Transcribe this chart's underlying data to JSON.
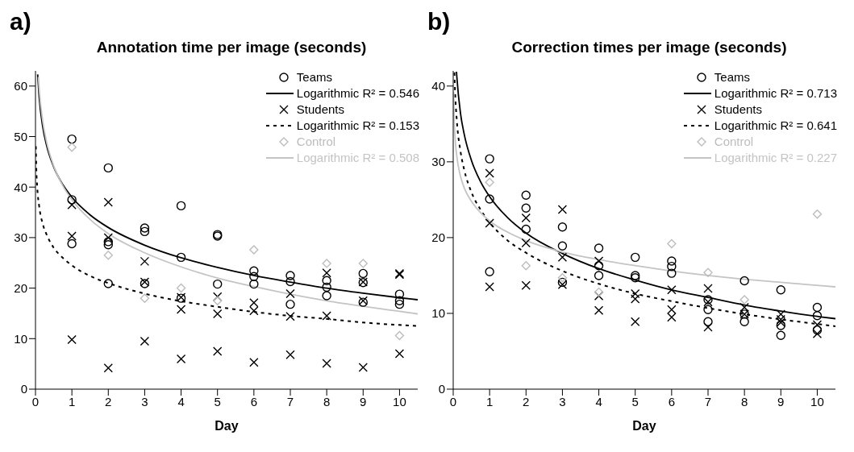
{
  "chart_data": [
    {
      "type": "scatter",
      "title": "Annotation time per image (seconds)",
      "xlabel": "Day",
      "annotations": [
        "a)"
      ],
      "xlim": [
        0,
        10.5
      ],
      "xticks": [
        0,
        1,
        2,
        3,
        4,
        5,
        6,
        7,
        8,
        9,
        10
      ],
      "ylim": [
        0,
        63
      ],
      "yticks": [
        0,
        10,
        20,
        30,
        40,
        50,
        60
      ],
      "legend": "top right",
      "series": [
        {
          "name": "Teams",
          "type": "scatter",
          "marker": "circle",
          "color": "#000000",
          "x": [
            1,
            1,
            1,
            2,
            2,
            2,
            2,
            3,
            3,
            3,
            4,
            4,
            4,
            5,
            5,
            5,
            6,
            6,
            6,
            7,
            7,
            7,
            8,
            8,
            8,
            9,
            9,
            9,
            10,
            10,
            10
          ],
          "values": [
            49.5,
            37.5,
            28.8,
            43.8,
            29.2,
            28.6,
            20.9,
            31.9,
            31.2,
            20.9,
            36.3,
            26.1,
            18.0,
            30.6,
            30.3,
            20.8,
            23.4,
            22.3,
            20.8,
            22.5,
            21.3,
            16.8,
            21.5,
            20.2,
            18.5,
            22.9,
            21.1,
            17.2,
            18.8,
            17.5,
            16.8
          ]
        },
        {
          "name": "Logarithmic R² = 0.546",
          "type": "line",
          "line_style": "solid",
          "color": "#000000",
          "x": [
            0.06,
            0.1,
            0.2,
            0.3,
            0.5,
            0.75,
            1,
            1.5,
            2,
            3,
            4,
            5,
            6,
            7,
            8,
            9,
            10,
            10.5
          ],
          "values": [
            62.3,
            57.9,
            51.9,
            48.4,
            44.0,
            40.5,
            38.0,
            34.5,
            32.0,
            28.5,
            26.0,
            24.1,
            22.5,
            21.2,
            20.0,
            19.0,
            18.1,
            17.7
          ]
        },
        {
          "name": "Students",
          "type": "scatter",
          "marker": "cross",
          "color": "#000000",
          "x": [
            1,
            1,
            1,
            2,
            2,
            2,
            3,
            3,
            3,
            4,
            4,
            4,
            5,
            5,
            5,
            6,
            6,
            6,
            7,
            7,
            7,
            8,
            8,
            8,
            9,
            9,
            9,
            10,
            10,
            10
          ],
          "values": [
            36.5,
            30.3,
            9.8,
            37.0,
            30.0,
            4.2,
            25.3,
            21.2,
            9.5,
            18.2,
            15.8,
            6.0,
            18.3,
            14.9,
            7.5,
            17.1,
            15.5,
            5.3,
            18.9,
            14.4,
            6.8,
            23.0,
            14.5,
            5.1,
            21.2,
            17.5,
            4.3,
            22.9,
            22.7,
            7.0
          ]
        },
        {
          "name": "Logarithmic R² = 0.153",
          "type": "line",
          "line_style": "dashed",
          "color": "#000000",
          "x": [
            0.01,
            0.02,
            0.05,
            0.1,
            0.2,
            0.3,
            0.5,
            0.75,
            1,
            1.5,
            2,
            3,
            4,
            5,
            6,
            7,
            8,
            9,
            10,
            10.5
          ],
          "values": [
            48.1,
            44.5,
            39.8,
            36.3,
            32.7,
            30.7,
            28.0,
            26.0,
            24.5,
            22.4,
            21.0,
            18.9,
            17.4,
            16.3,
            15.3,
            14.5,
            13.9,
            13.2,
            12.7,
            12.5
          ]
        },
        {
          "name": "Control",
          "type": "scatter",
          "marker": "diamond",
          "color": "#bdbdbd",
          "x": [
            1,
            2,
            3,
            4,
            5,
            6,
            8,
            9,
            10
          ],
          "values": [
            47.9,
            26.5,
            18.0,
            20.0,
            17.5,
            27.6,
            24.9,
            24.9,
            10.6
          ]
        },
        {
          "name": "Logarithmic R² = 0.508",
          "type": "line",
          "line_style": "solid",
          "color": "#c4c4c4",
          "x": [
            0.08,
            0.1,
            0.2,
            0.3,
            0.5,
            0.75,
            1,
            1.5,
            2,
            3,
            4,
            5,
            6,
            7,
            8,
            9,
            10,
            10.5
          ],
          "values": [
            61.8,
            59.6,
            53.0,
            49.1,
            44.2,
            40.3,
            37.5,
            33.6,
            30.8,
            27.0,
            24.2,
            22.0,
            20.3,
            18.8,
            17.5,
            16.4,
            15.4,
            14.9
          ]
        }
      ]
    },
    {
      "type": "scatter",
      "title": "Correction times per image (seconds)",
      "xlabel": "Day",
      "annotations": [
        "b)"
      ],
      "xlim": [
        0,
        10.5
      ],
      "xticks": [
        0,
        1,
        2,
        3,
        4,
        5,
        6,
        7,
        8,
        9,
        10
      ],
      "ylim": [
        0,
        42
      ],
      "yticks": [
        0,
        10,
        20,
        30,
        40
      ],
      "legend": "top right",
      "series": [
        {
          "name": "Teams",
          "type": "scatter",
          "marker": "circle",
          "color": "#000000",
          "x": [
            1,
            1,
            1,
            2,
            2,
            2,
            3,
            3,
            3,
            4,
            4,
            4,
            5,
            5,
            5,
            6,
            6,
            6,
            7,
            7,
            7,
            8,
            8,
            8,
            9,
            9,
            9,
            10,
            10,
            10
          ],
          "values": [
            30.4,
            25.1,
            15.5,
            25.6,
            23.9,
            21.1,
            21.4,
            18.9,
            14.1,
            18.6,
            16.3,
            15.0,
            17.4,
            15.0,
            14.7,
            16.9,
            16.2,
            15.3,
            11.8,
            10.5,
            8.9,
            14.3,
            9.9,
            8.9,
            13.1,
            8.4,
            7.1,
            10.8,
            9.7,
            7.8
          ]
        },
        {
          "name": "Logarithmic R² = 0.713",
          "type": "line",
          "line_style": "solid",
          "color": "#000000",
          "x": [
            0.09,
            0.1,
            0.2,
            0.3,
            0.5,
            0.75,
            1,
            1.5,
            2,
            3,
            4,
            5,
            6,
            7,
            8,
            9,
            10,
            10.5
          ],
          "values": [
            41.9,
            41.2,
            36.4,
            33.7,
            30.2,
            27.4,
            25.4,
            22.6,
            20.6,
            17.9,
            15.9,
            14.4,
            13.1,
            12.1,
            11.1,
            10.3,
            9.6,
            9.3
          ]
        },
        {
          "name": "Students",
          "type": "scatter",
          "marker": "cross",
          "color": "#000000",
          "x": [
            1,
            1,
            1,
            2,
            2,
            2,
            3,
            3,
            3,
            4,
            4,
            4,
            5,
            5,
            5,
            6,
            6,
            6,
            7,
            7,
            7,
            8,
            8,
            9,
            9,
            9,
            10,
            10
          ],
          "values": [
            28.5,
            21.9,
            13.5,
            22.6,
            19.3,
            13.7,
            23.7,
            17.4,
            13.8,
            16.9,
            12.3,
            10.4,
            12.6,
            11.9,
            8.9,
            13.1,
            10.5,
            9.5,
            13.3,
            11.5,
            8.2,
            10.8,
            9.9,
            9.9,
            9.2,
            8.8,
            8.5,
            7.3
          ]
        },
        {
          "name": "Logarithmic R² = 0.641",
          "type": "line",
          "line_style": "dashed",
          "color": "#000000",
          "x": [
            0.033,
            0.05,
            0.1,
            0.2,
            0.3,
            0.5,
            0.75,
            1,
            1.5,
            2,
            3,
            4,
            5,
            6,
            7,
            8,
            9,
            10,
            10.5
          ],
          "values": [
            41.8,
            39.4,
            35.4,
            31.4,
            29.0,
            26.0,
            23.7,
            22.0,
            19.6,
            18.0,
            15.6,
            13.9,
            12.6,
            11.6,
            10.7,
            9.9,
            9.2,
            8.6,
            8.3
          ]
        },
        {
          "name": "Control",
          "type": "scatter",
          "marker": "diamond",
          "color": "#bdbdbd",
          "x": [
            1,
            2,
            3,
            4,
            6,
            7,
            8,
            10
          ],
          "values": [
            27.3,
            16.3,
            14.7,
            12.8,
            19.2,
            15.4,
            11.8,
            23.1
          ]
        },
        {
          "name": "Logarithmic R² = 0.227",
          "type": "line",
          "line_style": "solid",
          "color": "#c4c4c4",
          "x": [
            0.01,
            0.02,
            0.05,
            0.1,
            0.2,
            0.3,
            0.5,
            0.75,
            1,
            1.5,
            2,
            3,
            4,
            5,
            6,
            7,
            8,
            9,
            10,
            10.5
          ],
          "values": [
            39.2,
            36.6,
            33.3,
            30.7,
            28.1,
            26.6,
            24.8,
            23.3,
            22.2,
            20.7,
            19.6,
            18.1,
            17.1,
            16.3,
            15.6,
            15.0,
            14.5,
            14.1,
            13.7,
            13.5
          ]
        }
      ]
    }
  ]
}
